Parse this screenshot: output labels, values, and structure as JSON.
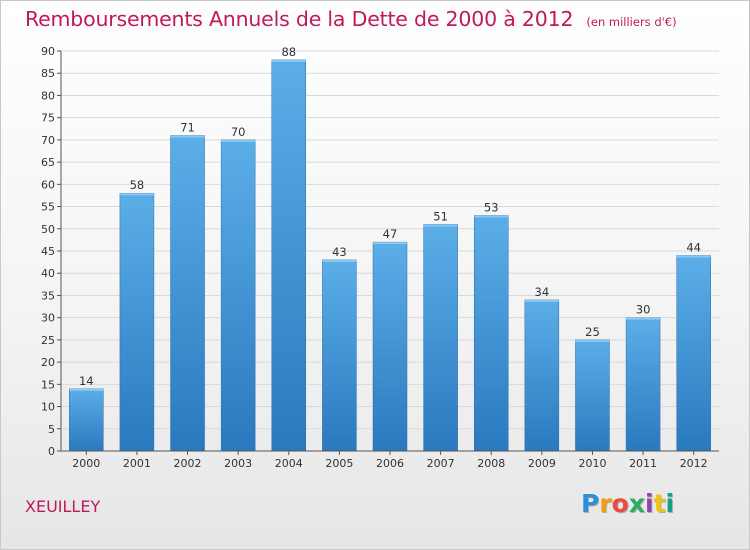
{
  "header": {
    "title": "Remboursements Annuels de la Dette de 2000 à 2012",
    "unit": "(en milliers d'€)"
  },
  "footer": {
    "commune": "XEUILLEY",
    "logo_text": "Proxiti"
  },
  "colors": {
    "title": "#c2185b",
    "bar_top": "#5caee8",
    "bar_bottom": "#2a79bf",
    "grid": "#d9d9d9",
    "axis": "#555555"
  },
  "chart_data": {
    "type": "bar",
    "title": "Remboursements Annuels de la Dette de 2000 à 2012",
    "xlabel": "",
    "ylabel": "",
    "categories": [
      "2000",
      "2001",
      "2002",
      "2003",
      "2004",
      "2005",
      "2006",
      "2007",
      "2008",
      "2009",
      "2010",
      "2011",
      "2012"
    ],
    "values": [
      14,
      58,
      71,
      70,
      88,
      43,
      47,
      51,
      53,
      34,
      25,
      30,
      44
    ],
    "ylim": [
      0,
      90
    ],
    "yticks": [
      0,
      5,
      10,
      15,
      20,
      25,
      30,
      35,
      40,
      45,
      50,
      55,
      60,
      65,
      70,
      75,
      80,
      85,
      90
    ],
    "grid": true,
    "data_labels": true
  }
}
